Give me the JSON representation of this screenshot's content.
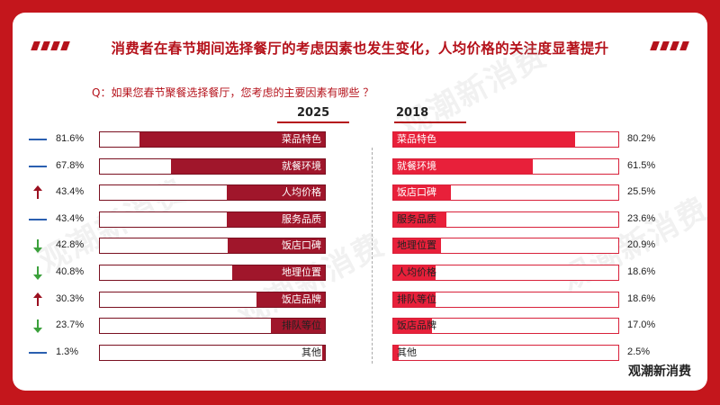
{
  "title": "消费者在春节期间选择餐厅的考虑因素也发生变化，人均价格的关注度显著提升",
  "question": "Q：如果您春节聚餐选择餐厅，您考虑的主要因素有哪些 ？",
  "watermark": "观潮新消费",
  "colors": {
    "left_fill": "#a0162b",
    "right_fill": "#e8203a",
    "up": "#9b1020",
    "down": "#3ba03b",
    "flat": "#2a5fb0"
  },
  "chart_data": [
    {
      "type": "bar",
      "year": "2025",
      "orientation": "horizontal-right-aligned",
      "categories": [
        "菜品特色",
        "就餐环境",
        "人均价格",
        "服务品质",
        "饭店口碑",
        "地理位置",
        "饭店品牌",
        "排队等位",
        "其他"
      ],
      "values": [
        81.6,
        67.8,
        43.4,
        43.4,
        42.8,
        40.8,
        30.3,
        23.7,
        1.3
      ],
      "value_labels": [
        "81.6%",
        "67.8%",
        "43.4%",
        "43.4%",
        "42.8%",
        "40.8%",
        "30.3%",
        "23.7%",
        "1.3%"
      ],
      "trend": [
        "flat",
        "flat",
        "up",
        "flat",
        "down",
        "down",
        "up",
        "down",
        "flat"
      ],
      "xlim": [
        0,
        100
      ]
    },
    {
      "type": "bar",
      "year": "2018",
      "orientation": "horizontal-left-aligned",
      "categories": [
        "菜品特色",
        "就餐环境",
        "饭店口碑",
        "服务品质",
        "地理位置",
        "人均价格",
        "排队等位",
        "饭店品牌",
        "其他"
      ],
      "values": [
        80.2,
        61.5,
        25.5,
        23.6,
        20.9,
        18.6,
        18.6,
        17.0,
        2.5
      ],
      "value_labels": [
        "80.2%",
        "61.5%",
        "25.5%",
        "23.6%",
        "20.9%",
        "18.6%",
        "18.6%",
        "17.0%",
        "2.5%"
      ],
      "xlim": [
        0,
        100
      ]
    }
  ]
}
